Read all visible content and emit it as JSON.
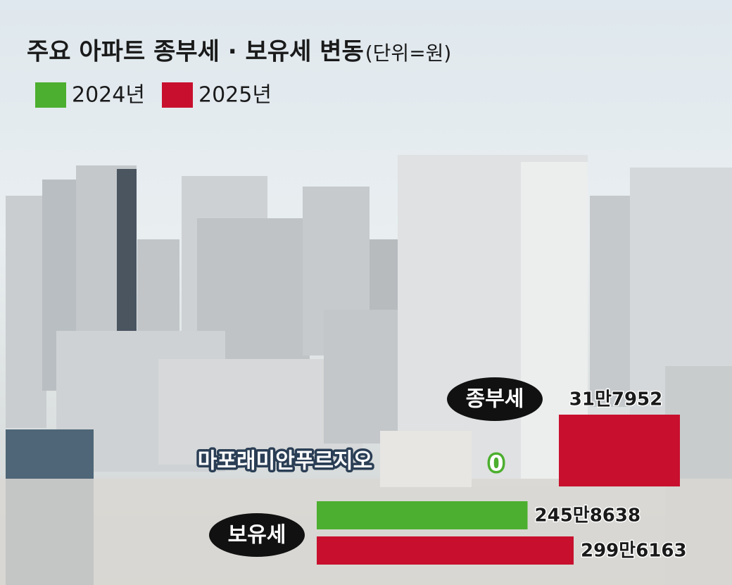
{
  "chart_data": {
    "type": "bar",
    "title": "주요 아파트 종부세 · 보유세 변동",
    "unit": "(단위=원)",
    "subtitle": "마포래미안푸르지오",
    "categories": [
      "종부세",
      "보유세"
    ],
    "series": [
      {
        "name": "2024년",
        "color": "#4caf2f",
        "values": [
          0,
          2458638
        ],
        "value_labels": [
          "0",
          "245만8638"
        ]
      },
      {
        "name": "2025년",
        "color": "#c8102e",
        "values": [
          317952,
          2996163
        ],
        "value_labels": [
          "31만7952",
          "299만6163"
        ]
      }
    ]
  }
}
